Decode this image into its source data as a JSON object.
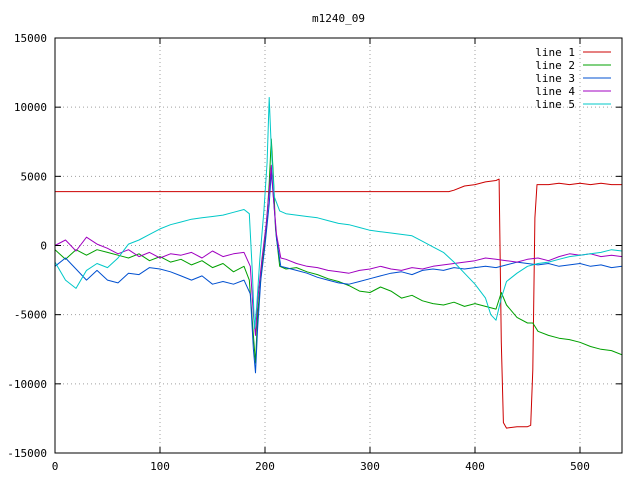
{
  "chart_data": {
    "type": "line",
    "title": "m1240_09",
    "xlabel": "",
    "ylabel": "",
    "xlim": [
      0,
      540
    ],
    "ylim": [
      -15000,
      15000
    ],
    "x_ticks": [
      0,
      100,
      200,
      300,
      400,
      500
    ],
    "y_ticks": [
      -15000,
      -10000,
      -5000,
      0,
      5000,
      10000,
      15000
    ],
    "grid": true,
    "legend_position": "top-right",
    "series": [
      {
        "name": "line 1",
        "color": "#cc0000",
        "points": [
          [
            0,
            3900
          ],
          [
            100,
            3900
          ],
          [
            200,
            3900
          ],
          [
            300,
            3900
          ],
          [
            375,
            3900
          ],
          [
            380,
            4000
          ],
          [
            390,
            4300
          ],
          [
            400,
            4400
          ],
          [
            410,
            4600
          ],
          [
            420,
            4700
          ],
          [
            423,
            4800
          ],
          [
            425,
            -7000
          ],
          [
            427,
            -12800
          ],
          [
            430,
            -13200
          ],
          [
            440,
            -13100
          ],
          [
            450,
            -13100
          ],
          [
            453,
            -13000
          ],
          [
            455,
            -9000
          ],
          [
            457,
            2000
          ],
          [
            459,
            4400
          ],
          [
            470,
            4400
          ],
          [
            480,
            4500
          ],
          [
            490,
            4400
          ],
          [
            500,
            4500
          ],
          [
            510,
            4400
          ],
          [
            520,
            4500
          ],
          [
            530,
            4400
          ],
          [
            540,
            4400
          ]
        ]
      },
      {
        "name": "line 2",
        "color": "#00a000",
        "points": [
          [
            0,
            -300
          ],
          [
            10,
            -1000
          ],
          [
            20,
            -300
          ],
          [
            30,
            -700
          ],
          [
            40,
            -300
          ],
          [
            50,
            -500
          ],
          [
            60,
            -700
          ],
          [
            70,
            -900
          ],
          [
            80,
            -600
          ],
          [
            90,
            -1100
          ],
          [
            100,
            -800
          ],
          [
            110,
            -1200
          ],
          [
            120,
            -1000
          ],
          [
            130,
            -1400
          ],
          [
            140,
            -1100
          ],
          [
            150,
            -1600
          ],
          [
            160,
            -1300
          ],
          [
            170,
            -1900
          ],
          [
            180,
            -1500
          ],
          [
            185,
            -2500
          ],
          [
            189,
            -6500
          ],
          [
            191,
            -8500
          ],
          [
            193,
            -5000
          ],
          [
            197,
            -1500
          ],
          [
            201,
            1000
          ],
          [
            204,
            4500
          ],
          [
            206,
            7700
          ],
          [
            208,
            5000
          ],
          [
            210,
            1200
          ],
          [
            214,
            -1500
          ],
          [
            220,
            -1700
          ],
          [
            230,
            -1600
          ],
          [
            240,
            -1900
          ],
          [
            250,
            -2100
          ],
          [
            260,
            -2400
          ],
          [
            270,
            -2600
          ],
          [
            280,
            -2900
          ],
          [
            290,
            -3300
          ],
          [
            300,
            -3400
          ],
          [
            310,
            -3000
          ],
          [
            320,
            -3300
          ],
          [
            330,
            -3800
          ],
          [
            340,
            -3600
          ],
          [
            350,
            -4000
          ],
          [
            360,
            -4200
          ],
          [
            370,
            -4300
          ],
          [
            380,
            -4100
          ],
          [
            390,
            -4400
          ],
          [
            400,
            -4200
          ],
          [
            410,
            -4400
          ],
          [
            420,
            -4600
          ],
          [
            425,
            -3400
          ],
          [
            430,
            -4300
          ],
          [
            440,
            -5200
          ],
          [
            450,
            -5600
          ],
          [
            455,
            -5600
          ],
          [
            460,
            -6200
          ],
          [
            470,
            -6500
          ],
          [
            480,
            -6700
          ],
          [
            490,
            -6800
          ],
          [
            500,
            -7000
          ],
          [
            510,
            -7300
          ],
          [
            520,
            -7500
          ],
          [
            530,
            -7600
          ],
          [
            540,
            -7900
          ]
        ]
      },
      {
        "name": "line 3",
        "color": "#0050d0",
        "points": [
          [
            0,
            -1500
          ],
          [
            10,
            -900
          ],
          [
            20,
            -1700
          ],
          [
            30,
            -2500
          ],
          [
            40,
            -1800
          ],
          [
            50,
            -2500
          ],
          [
            60,
            -2700
          ],
          [
            70,
            -2000
          ],
          [
            80,
            -2100
          ],
          [
            90,
            -1600
          ],
          [
            100,
            -1700
          ],
          [
            110,
            -1900
          ],
          [
            120,
            -2200
          ],
          [
            130,
            -2500
          ],
          [
            140,
            -2200
          ],
          [
            150,
            -2800
          ],
          [
            160,
            -2600
          ],
          [
            170,
            -2800
          ],
          [
            180,
            -2500
          ],
          [
            186,
            -3500
          ],
          [
            189,
            -7500
          ],
          [
            191,
            -9200
          ],
          [
            193,
            -6000
          ],
          [
            196,
            -2500
          ],
          [
            200,
            0
          ],
          [
            204,
            3000
          ],
          [
            206,
            5300
          ],
          [
            208,
            3500
          ],
          [
            211,
            500
          ],
          [
            215,
            -1500
          ],
          [
            220,
            -1600
          ],
          [
            230,
            -1800
          ],
          [
            240,
            -2000
          ],
          [
            250,
            -2300
          ],
          [
            260,
            -2500
          ],
          [
            270,
            -2700
          ],
          [
            280,
            -2800
          ],
          [
            290,
            -2600
          ],
          [
            300,
            -2400
          ],
          [
            310,
            -2200
          ],
          [
            320,
            -2000
          ],
          [
            330,
            -1900
          ],
          [
            340,
            -2100
          ],
          [
            350,
            -1800
          ],
          [
            360,
            -1700
          ],
          [
            370,
            -1800
          ],
          [
            380,
            -1600
          ],
          [
            390,
            -1700
          ],
          [
            400,
            -1600
          ],
          [
            410,
            -1500
          ],
          [
            420,
            -1600
          ],
          [
            430,
            -1400
          ],
          [
            440,
            -1200
          ],
          [
            450,
            -1300
          ],
          [
            460,
            -1400
          ],
          [
            470,
            -1300
          ],
          [
            480,
            -1500
          ],
          [
            490,
            -1400
          ],
          [
            500,
            -1300
          ],
          [
            510,
            -1500
          ],
          [
            520,
            -1400
          ],
          [
            530,
            -1600
          ],
          [
            540,
            -1500
          ]
        ]
      },
      {
        "name": "line 4",
        "color": "#a000c0",
        "points": [
          [
            0,
            0
          ],
          [
            10,
            400
          ],
          [
            20,
            -400
          ],
          [
            30,
            600
          ],
          [
            40,
            100
          ],
          [
            50,
            -200
          ],
          [
            60,
            -600
          ],
          [
            70,
            -300
          ],
          [
            80,
            -800
          ],
          [
            90,
            -500
          ],
          [
            100,
            -900
          ],
          [
            110,
            -600
          ],
          [
            120,
            -700
          ],
          [
            130,
            -500
          ],
          [
            140,
            -900
          ],
          [
            150,
            -400
          ],
          [
            160,
            -800
          ],
          [
            170,
            -600
          ],
          [
            180,
            -500
          ],
          [
            186,
            -1500
          ],
          [
            189,
            -5000
          ],
          [
            191,
            -6500
          ],
          [
            193,
            -4000
          ],
          [
            197,
            -1000
          ],
          [
            201,
            1500
          ],
          [
            204,
            4000
          ],
          [
            206,
            5800
          ],
          [
            208,
            3500
          ],
          [
            211,
            800
          ],
          [
            215,
            -900
          ],
          [
            220,
            -1000
          ],
          [
            230,
            -1300
          ],
          [
            240,
            -1500
          ],
          [
            250,
            -1600
          ],
          [
            260,
            -1800
          ],
          [
            270,
            -1900
          ],
          [
            280,
            -2000
          ],
          [
            290,
            -1800
          ],
          [
            300,
            -1700
          ],
          [
            310,
            -1500
          ],
          [
            320,
            -1700
          ],
          [
            330,
            -1800
          ],
          [
            340,
            -1600
          ],
          [
            350,
            -1700
          ],
          [
            360,
            -1500
          ],
          [
            370,
            -1400
          ],
          [
            380,
            -1300
          ],
          [
            390,
            -1200
          ],
          [
            400,
            -1100
          ],
          [
            410,
            -900
          ],
          [
            420,
            -1000
          ],
          [
            430,
            -1100
          ],
          [
            440,
            -1200
          ],
          [
            450,
            -1000
          ],
          [
            460,
            -900
          ],
          [
            470,
            -1100
          ],
          [
            480,
            -800
          ],
          [
            490,
            -600
          ],
          [
            500,
            -700
          ],
          [
            510,
            -600
          ],
          [
            520,
            -800
          ],
          [
            530,
            -700
          ],
          [
            540,
            -800
          ]
        ]
      },
      {
        "name": "line 5",
        "color": "#00c8c8",
        "points": [
          [
            0,
            -1200
          ],
          [
            10,
            -2500
          ],
          [
            20,
            -3100
          ],
          [
            30,
            -1800
          ],
          [
            40,
            -1300
          ],
          [
            50,
            -1600
          ],
          [
            60,
            -900
          ],
          [
            70,
            100
          ],
          [
            80,
            400
          ],
          [
            90,
            800
          ],
          [
            100,
            1200
          ],
          [
            110,
            1500
          ],
          [
            120,
            1700
          ],
          [
            130,
            1900
          ],
          [
            140,
            2000
          ],
          [
            150,
            2100
          ],
          [
            160,
            2200
          ],
          [
            170,
            2400
          ],
          [
            180,
            2600
          ],
          [
            185,
            2300
          ],
          [
            188,
            -2000
          ],
          [
            190,
            -6000
          ],
          [
            192,
            -4500
          ],
          [
            195,
            -1000
          ],
          [
            199,
            2500
          ],
          [
            202,
            6000
          ],
          [
            204,
            10700
          ],
          [
            206,
            7000
          ],
          [
            209,
            3500
          ],
          [
            214,
            2500
          ],
          [
            220,
            2300
          ],
          [
            230,
            2200
          ],
          [
            240,
            2100
          ],
          [
            250,
            2000
          ],
          [
            260,
            1800
          ],
          [
            270,
            1600
          ],
          [
            280,
            1500
          ],
          [
            290,
            1300
          ],
          [
            300,
            1100
          ],
          [
            310,
            1000
          ],
          [
            320,
            900
          ],
          [
            330,
            800
          ],
          [
            340,
            700
          ],
          [
            350,
            300
          ],
          [
            360,
            -100
          ],
          [
            370,
            -500
          ],
          [
            380,
            -1200
          ],
          [
            390,
            -2000
          ],
          [
            400,
            -2800
          ],
          [
            410,
            -3800
          ],
          [
            415,
            -5000
          ],
          [
            420,
            -5400
          ],
          [
            425,
            -3800
          ],
          [
            430,
            -2600
          ],
          [
            440,
            -2000
          ],
          [
            450,
            -1500
          ],
          [
            460,
            -1300
          ],
          [
            470,
            -1200
          ],
          [
            480,
            -1000
          ],
          [
            490,
            -800
          ],
          [
            500,
            -700
          ],
          [
            510,
            -600
          ],
          [
            520,
            -500
          ],
          [
            530,
            -300
          ],
          [
            540,
            -400
          ]
        ]
      }
    ]
  }
}
